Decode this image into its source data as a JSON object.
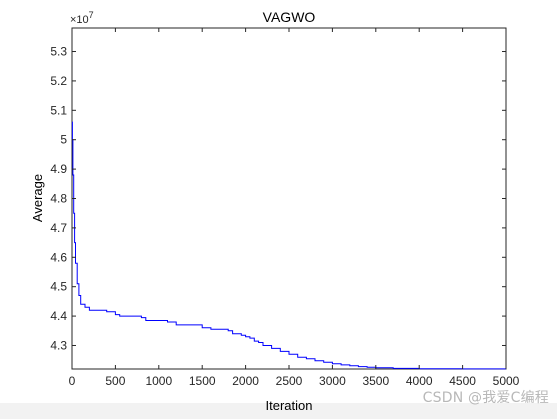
{
  "chart_data": {
    "type": "line",
    "title": "VAGWO",
    "xlabel": "Iteration",
    "ylabel": "Average",
    "y_exponent_label": "×10",
    "y_exponent_power": "7",
    "xlim": [
      0,
      5000
    ],
    "ylim": [
      42200000,
      53800000
    ],
    "x_ticks": [
      0,
      500,
      1000,
      1500,
      2000,
      2500,
      3000,
      3500,
      4000,
      4500,
      5000
    ],
    "x_tick_labels": [
      "0",
      "500",
      "1000",
      "1500",
      "2000",
      "2500",
      "3000",
      "3500",
      "4000",
      "4500",
      "5000"
    ],
    "y_ticks": [
      43000000,
      44000000,
      45000000,
      46000000,
      47000000,
      48000000,
      49000000,
      50000000,
      51000000,
      52000000,
      53000000
    ],
    "y_tick_labels": [
      "4.3",
      "4.4",
      "4.5",
      "4.6",
      "4.7",
      "4.8",
      "4.9",
      "5",
      "5.1",
      "5.2",
      "5.3"
    ],
    "grid": false,
    "series": [
      {
        "color": "#0000ff",
        "x": [
          0,
          5,
          10,
          20,
          30,
          40,
          60,
          80,
          100,
          150,
          200,
          400,
          500,
          550,
          800,
          850,
          1100,
          1200,
          1500,
          1600,
          1800,
          1850,
          1950,
          2000,
          2050,
          2100,
          2150,
          2200,
          2300,
          2400,
          2500,
          2600,
          2700,
          2800,
          2900,
          3000,
          3100,
          3200,
          3300,
          3400,
          3500,
          3700,
          4000,
          4500,
          5000
        ],
        "y": [
          50600000,
          50000000,
          48800000,
          47500000,
          46500000,
          45800000,
          45100000,
          44700000,
          44400000,
          44300000,
          44200000,
          44150000,
          44050000,
          44000000,
          43950000,
          43850000,
          43800000,
          43700000,
          43600000,
          43550000,
          43500000,
          43400000,
          43350000,
          43300000,
          43250000,
          43150000,
          43100000,
          43000000,
          42900000,
          42800000,
          42700000,
          42600000,
          42550000,
          42480000,
          42430000,
          42380000,
          42340000,
          42310000,
          42280000,
          42260000,
          42240000,
          42220000,
          42210000,
          42205000,
          42200000
        ]
      }
    ]
  },
  "watermark": "CSDN @我爱C编程"
}
